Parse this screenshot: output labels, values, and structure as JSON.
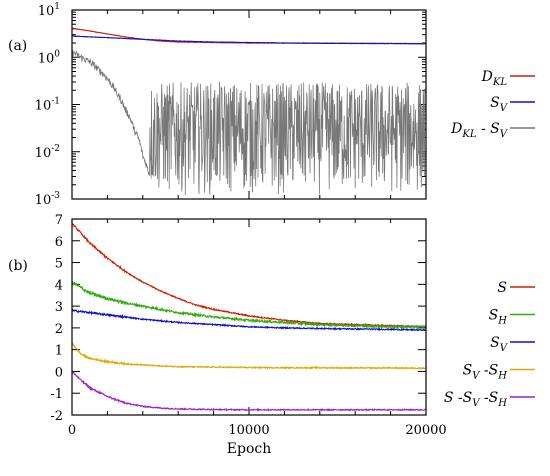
{
  "chart_data": [
    {
      "id": "a",
      "type": "line",
      "panel_label": "(a)",
      "yscale": "log",
      "xlim": [
        0,
        20000
      ],
      "ylim": [
        0.001,
        10
      ],
      "ytick_labels": [
        {
          "value": 10,
          "base": "10",
          "exp": "1"
        },
        {
          "value": 1,
          "base": "10",
          "exp": "0"
        },
        {
          "value": 0.1,
          "base": "10",
          "exp": "-1"
        },
        {
          "value": 0.01,
          "base": "10",
          "exp": "-2"
        },
        {
          "value": 0.001,
          "base": "10",
          "exp": "-3"
        }
      ],
      "legend_position": "right",
      "series": [
        {
          "name": "D_KL",
          "label_main": "D",
          "label_sub": "KL",
          "color": "#cc2200",
          "x": [
            0,
            1000,
            2000,
            3000,
            4000,
            5000,
            6000,
            8000,
            10000,
            12000,
            14000,
            16000,
            18000,
            20000
          ],
          "y": [
            4.1,
            3.6,
            3.1,
            2.7,
            2.4,
            2.2,
            2.1,
            2.05,
            2.0,
            2.0,
            1.98,
            1.97,
            1.96,
            1.95
          ]
        },
        {
          "name": "S_V",
          "label_main": "S",
          "label_sub": "V",
          "color": "#1010c8",
          "x": [
            0,
            2000,
            4000,
            6000,
            8000,
            10000,
            12000,
            14000,
            16000,
            18000,
            20000
          ],
          "y": [
            2.8,
            2.6,
            2.4,
            2.2,
            2.1,
            2.05,
            2.0,
            1.98,
            1.96,
            1.95,
            1.93
          ]
        },
        {
          "name": "D_KL - S_V",
          "label_main": "D",
          "label_sub": "KL",
          "label_mid": " - S",
          "label_sub2": "V",
          "color": "#777777",
          "x": [
            0,
            500,
            1000,
            1500,
            2000,
            2500,
            3000,
            3500,
            4000,
            4300,
            4600,
            5000,
            6000,
            8000,
            10000,
            12000,
            14000,
            16000,
            18000,
            20000
          ],
          "y": [
            1.3,
            1.0,
            0.8,
            0.55,
            0.35,
            0.18,
            0.08,
            0.03,
            0.008,
            0.004,
            0.002,
            0.01,
            0.01,
            0.008,
            0.007,
            0.006,
            0.01,
            0.01,
            0.01,
            0.01
          ]
        }
      ]
    },
    {
      "id": "b",
      "type": "line",
      "panel_label": "(b)",
      "yscale": "linear",
      "xlim": [
        0,
        20000
      ],
      "ylim": [
        -2,
        7
      ],
      "yticks": [
        "7",
        "6",
        "5",
        "4",
        "3",
        "2",
        "1",
        "0",
        "-1",
        "-2"
      ],
      "xticks": [
        "0",
        "10000",
        "20000"
      ],
      "xlabel": "Epoch",
      "legend_position": "right",
      "series": [
        {
          "name": "S",
          "label_main": "S",
          "color": "#cc2200",
          "x": [
            0,
            1000,
            2000,
            3000,
            4000,
            5000,
            6000,
            7000,
            8000,
            9000,
            10000,
            12000,
            14000,
            16000,
            18000,
            20000
          ],
          "y": [
            6.8,
            5.9,
            5.2,
            4.6,
            4.1,
            3.7,
            3.35,
            3.05,
            2.85,
            2.7,
            2.55,
            2.35,
            2.2,
            2.15,
            2.1,
            2.05
          ]
        },
        {
          "name": "S_H",
          "label_main": "S",
          "label_sub": "H",
          "color": "#33aa11",
          "x": [
            0,
            1000,
            2000,
            3000,
            4000,
            5000,
            6000,
            8000,
            10000,
            12000,
            14000,
            16000,
            18000,
            20000
          ],
          "y": [
            4.1,
            3.6,
            3.35,
            3.15,
            3.0,
            2.85,
            2.7,
            2.5,
            2.35,
            2.25,
            2.15,
            2.1,
            2.05,
            2.05
          ]
        },
        {
          "name": "S_V",
          "label_main": "S",
          "label_sub": "V",
          "color": "#1010c8",
          "x": [
            0,
            2000,
            4000,
            6000,
            8000,
            10000,
            12000,
            14000,
            16000,
            18000,
            20000
          ],
          "y": [
            2.8,
            2.6,
            2.4,
            2.25,
            2.15,
            2.05,
            2.0,
            1.97,
            1.95,
            1.93,
            1.9
          ]
        },
        {
          "name": "S_V - S_H",
          "label_main": "S",
          "label_sub": "V",
          "label_mid": " -S",
          "label_sub2": "H",
          "color": "#ddaa00",
          "x": [
            0,
            500,
            1000,
            2000,
            3000,
            4000,
            5000,
            6000,
            8000,
            10000,
            12000,
            14000,
            16000,
            18000,
            20000
          ],
          "y": [
            1.3,
            0.8,
            0.6,
            0.45,
            0.35,
            0.3,
            0.25,
            0.22,
            0.2,
            0.18,
            0.17,
            0.17,
            0.16,
            0.16,
            0.15
          ]
        },
        {
          "name": "S - S_V - S_H",
          "label_main": "S",
          "label_mid0": " -S",
          "label_sub": "V",
          "label_mid": " -S",
          "label_sub2": "H",
          "color": "#9922cc",
          "x": [
            0,
            500,
            1000,
            2000,
            3000,
            4000,
            5000,
            6000,
            8000,
            10000,
            14000,
            20000
          ],
          "y": [
            0.0,
            -0.4,
            -0.75,
            -1.15,
            -1.45,
            -1.6,
            -1.68,
            -1.72,
            -1.75,
            -1.76,
            -1.76,
            -1.76
          ]
        }
      ]
    }
  ]
}
